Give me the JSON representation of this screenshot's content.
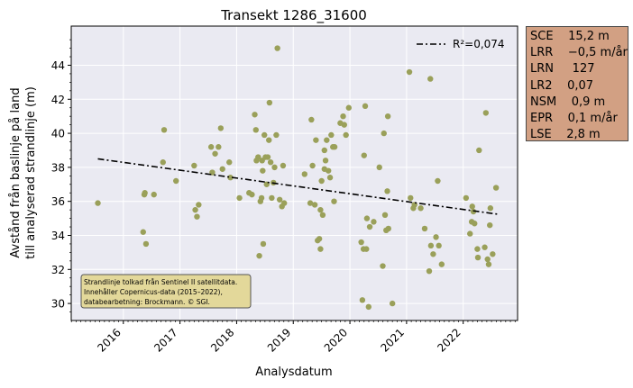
{
  "chart_data": {
    "type": "scatter",
    "title": "Transekt 1286_31600",
    "xlabel": "Analysdatum",
    "ylabel_lines": [
      "Avstånd från baslinje på land",
      "till analyserad strandlinje (m)"
    ],
    "xlim": [
      2015.08,
      2022.96
    ],
    "ylim": [
      29.0,
      46.3
    ],
    "x_ticks": [
      2016,
      2017,
      2018,
      2019,
      2020,
      2021,
      2022
    ],
    "x_tick_labels": [
      "2016",
      "2017",
      "2018",
      "2019",
      "2020",
      "2021",
      "2022"
    ],
    "y_ticks": [
      30,
      32,
      34,
      36,
      38,
      40,
      42,
      44
    ],
    "y_tick_labels": [
      "30",
      "32",
      "34",
      "36",
      "38",
      "40",
      "42",
      "44"
    ],
    "grid": true,
    "legend": {
      "position": "top-right",
      "label": "R²=0,074"
    },
    "trend_line": {
      "x": [
        2015.55,
        2022.6
      ],
      "y": [
        38.5,
        35.25
      ],
      "style": "dash-dot"
    },
    "points": [
      [
        2015.55,
        35.9
      ],
      [
        2016.35,
        34.2
      ],
      [
        2016.37,
        36.4
      ],
      [
        2016.38,
        36.5
      ],
      [
        2016.4,
        33.5
      ],
      [
        2016.54,
        36.4
      ],
      [
        2016.7,
        38.3
      ],
      [
        2016.72,
        40.2
      ],
      [
        2016.93,
        37.2
      ],
      [
        2017.25,
        38.1
      ],
      [
        2017.27,
        35.5
      ],
      [
        2017.3,
        35.1
      ],
      [
        2017.33,
        35.8
      ],
      [
        2017.55,
        39.2
      ],
      [
        2017.57,
        37.7
      ],
      [
        2017.62,
        38.8
      ],
      [
        2017.68,
        39.2
      ],
      [
        2017.72,
        40.3
      ],
      [
        2017.75,
        37.9
      ],
      [
        2017.87,
        38.3
      ],
      [
        2017.89,
        37.4
      ],
      [
        2018.05,
        36.2
      ],
      [
        2018.22,
        36.5
      ],
      [
        2018.27,
        36.4
      ],
      [
        2018.32,
        41.1
      ],
      [
        2018.34,
        40.2
      ],
      [
        2018.35,
        38.4
      ],
      [
        2018.38,
        38.6
      ],
      [
        2018.42,
        36.0
      ],
      [
        2018.44,
        36.2
      ],
      [
        2018.45,
        38.4
      ],
      [
        2018.46,
        37.8
      ],
      [
        2018.47,
        33.5
      ],
      [
        2018.49,
        39.9
      ],
      [
        2018.51,
        38.6
      ],
      [
        2018.53,
        37.0
      ],
      [
        2018.55,
        38.6
      ],
      [
        2018.57,
        39.6
      ],
      [
        2018.58,
        41.8
      ],
      [
        2018.6,
        38.3
      ],
      [
        2018.62,
        36.2
      ],
      [
        2018.67,
        38.0
      ],
      [
        2018.7,
        39.9
      ],
      [
        2018.72,
        45.0
      ],
      [
        2018.76,
        36.1
      ],
      [
        2018.8,
        35.7
      ],
      [
        2018.82,
        38.1
      ],
      [
        2018.84,
        35.9
      ],
      [
        2018.4,
        32.8
      ],
      [
        2018.65,
        37.1
      ],
      [
        2019.2,
        37.6
      ],
      [
        2019.3,
        35.9
      ],
      [
        2019.32,
        40.8
      ],
      [
        2019.34,
        38.1
      ],
      [
        2019.38,
        35.8
      ],
      [
        2019.4,
        39.6
      ],
      [
        2019.43,
        33.7
      ],
      [
        2019.46,
        33.8
      ],
      [
        2019.48,
        35.5
      ],
      [
        2019.5,
        37.2
      ],
      [
        2019.52,
        35.2
      ],
      [
        2019.55,
        37.9
      ],
      [
        2019.57,
        38.4
      ],
      [
        2019.59,
        39.6
      ],
      [
        2019.62,
        37.8
      ],
      [
        2019.65,
        37.4
      ],
      [
        2019.67,
        39.9
      ],
      [
        2019.7,
        39.2
      ],
      [
        2019.72,
        36.0
      ],
      [
        2019.73,
        39.2
      ],
      [
        2019.83,
        40.6
      ],
      [
        2019.88,
        41.0
      ],
      [
        2019.9,
        40.5
      ],
      [
        2019.93,
        39.9
      ],
      [
        2019.98,
        41.5
      ],
      [
        2019.48,
        33.2
      ],
      [
        2019.55,
        39.0
      ],
      [
        2020.2,
        33.6
      ],
      [
        2020.22,
        30.2
      ],
      [
        2020.24,
        33.2
      ],
      [
        2020.25,
        38.7
      ],
      [
        2020.27,
        41.6
      ],
      [
        2020.29,
        33.2
      ],
      [
        2020.3,
        35.0
      ],
      [
        2020.33,
        29.8
      ],
      [
        2020.35,
        34.5
      ],
      [
        2020.42,
        34.8
      ],
      [
        2020.52,
        38.0
      ],
      [
        2020.58,
        32.2
      ],
      [
        2020.6,
        40.0
      ],
      [
        2020.62,
        35.2
      ],
      [
        2020.64,
        34.3
      ],
      [
        2020.66,
        36.6
      ],
      [
        2020.67,
        41.0
      ],
      [
        2020.68,
        34.4
      ],
      [
        2020.75,
        30.0
      ],
      [
        2021.05,
        43.6
      ],
      [
        2021.07,
        36.2
      ],
      [
        2021.12,
        35.6
      ],
      [
        2021.14,
        35.8
      ],
      [
        2021.25,
        35.6
      ],
      [
        2021.32,
        34.4
      ],
      [
        2021.4,
        31.9
      ],
      [
        2021.42,
        43.2
      ],
      [
        2021.43,
        33.4
      ],
      [
        2021.47,
        32.9
      ],
      [
        2021.52,
        33.9
      ],
      [
        2021.55,
        37.2
      ],
      [
        2021.57,
        33.4
      ],
      [
        2021.62,
        32.3
      ],
      [
        2022.05,
        36.2
      ],
      [
        2022.12,
        34.1
      ],
      [
        2022.15,
        34.8
      ],
      [
        2022.16,
        35.7
      ],
      [
        2022.18,
        35.4
      ],
      [
        2022.2,
        34.7
      ],
      [
        2022.25,
        33.2
      ],
      [
        2022.26,
        32.7
      ],
      [
        2022.28,
        39.0
      ],
      [
        2022.38,
        33.3
      ],
      [
        2022.4,
        41.2
      ],
      [
        2022.43,
        32.6
      ],
      [
        2022.47,
        34.6
      ],
      [
        2022.48,
        35.6
      ],
      [
        2022.52,
        32.9
      ],
      [
        2022.58,
        36.8
      ],
      [
        2022.45,
        32.3
      ]
    ],
    "annotation": [
      "Strandlinje tolkad från Sentinel II satellitdata.",
      "Innehåller Copernicus-data (2015–2022),",
      "databearbetning: Brockmann. © SGI."
    ]
  },
  "stats": [
    {
      "key": "SCE",
      "value": "15,2 m"
    },
    {
      "key": "LRR",
      "value": "−0,5 m/år"
    },
    {
      "key": "LRN",
      "value": "127"
    },
    {
      "key": "LR2",
      "value": "0,07"
    },
    {
      "key": "NSM",
      "value": "0,9 m"
    },
    {
      "key": "EPR",
      "value": "0,1 m/år"
    },
    {
      "key": "LSE",
      "value": "2,8 m"
    }
  ],
  "colors": {
    "plot_bg": "#eaeaf2",
    "point": "#9aa05a",
    "trend": "#000000",
    "stats_bg": "#d2a083",
    "annotation_bg": "#e3d89a"
  }
}
